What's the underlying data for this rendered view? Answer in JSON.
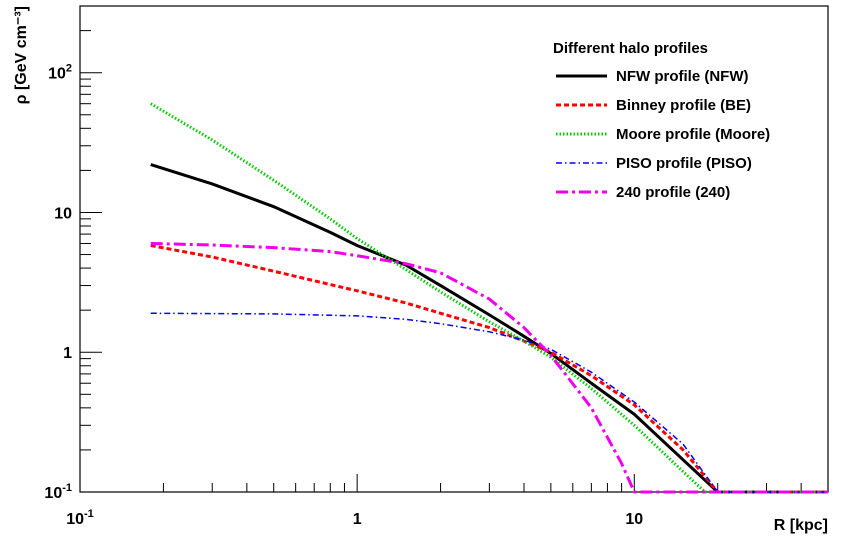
{
  "chart_data": {
    "type": "line",
    "title": "",
    "xlabel": "R [kpc]",
    "ylabel": "ρ [GeV cm⁻³]",
    "xscale": "log",
    "yscale": "log",
    "xlim": [
      0.1,
      50
    ],
    "ylim": [
      0.1,
      300
    ],
    "x_ticks": [
      {
        "value": 0.1,
        "base": "10",
        "exp": "-1"
      },
      {
        "value": 1,
        "base": "1",
        "exp": ""
      },
      {
        "value": 10,
        "base": "10",
        "exp": ""
      }
    ],
    "y_ticks": [
      {
        "value": 0.1,
        "base": "10",
        "exp": "-1"
      },
      {
        "value": 1,
        "base": "1",
        "exp": ""
      },
      {
        "value": 10,
        "base": "10",
        "exp": ""
      },
      {
        "value": 100,
        "base": "10",
        "exp": "2"
      }
    ],
    "grid": false,
    "legend": {
      "title": "Different halo profiles",
      "position": "top-right"
    },
    "series": [
      {
        "name": "NFW profile (NFW)",
        "color": "#000000",
        "dash": "solid",
        "points": [
          [
            0.18,
            22
          ],
          [
            0.3,
            16
          ],
          [
            0.5,
            11
          ],
          [
            0.8,
            7.2
          ],
          [
            1.0,
            5.8
          ],
          [
            1.5,
            4.2
          ],
          [
            2.0,
            3.0
          ],
          [
            3.0,
            1.85
          ],
          [
            4.0,
            1.3
          ],
          [
            5.0,
            0.98
          ],
          [
            7.0,
            0.6
          ],
          [
            10.0,
            0.36
          ],
          [
            15.0,
            0.17
          ],
          [
            20.0,
            0.1
          ],
          [
            50.0,
            0.1
          ]
        ]
      },
      {
        "name": "Binney profile (BE)",
        "color": "#ff0000",
        "dash": "dashed",
        "points": [
          [
            0.18,
            5.8
          ],
          [
            0.3,
            4.8
          ],
          [
            0.5,
            3.8
          ],
          [
            0.8,
            3.05
          ],
          [
            1.0,
            2.75
          ],
          [
            1.5,
            2.25
          ],
          [
            2.0,
            1.9
          ],
          [
            3.0,
            1.5
          ],
          [
            4.0,
            1.2
          ],
          [
            5.0,
            1.0
          ],
          [
            7.0,
            0.68
          ],
          [
            10.0,
            0.42
          ],
          [
            15.0,
            0.2
          ],
          [
            20.0,
            0.1
          ],
          [
            50.0,
            0.1
          ]
        ]
      },
      {
        "name": "Moore profile (Moore)",
        "color": "#00cc00",
        "dash": "dotted",
        "points": [
          [
            0.18,
            60
          ],
          [
            0.3,
            33
          ],
          [
            0.5,
            17
          ],
          [
            0.8,
            9.0
          ],
          [
            1.0,
            6.5
          ],
          [
            1.5,
            3.9
          ],
          [
            2.0,
            2.7
          ],
          [
            3.0,
            1.65
          ],
          [
            4.0,
            1.2
          ],
          [
            5.0,
            0.92
          ],
          [
            7.0,
            0.55
          ],
          [
            10.0,
            0.3
          ],
          [
            15.0,
            0.14
          ],
          [
            18.0,
            0.1
          ],
          [
            50.0,
            0.1
          ]
        ]
      },
      {
        "name": "PISO profile (PISO)",
        "color": "#0000ff",
        "dash": "dashdot",
        "points": [
          [
            0.18,
            1.9
          ],
          [
            0.5,
            1.88
          ],
          [
            1.0,
            1.82
          ],
          [
            1.5,
            1.72
          ],
          [
            2.0,
            1.6
          ],
          [
            3.0,
            1.4
          ],
          [
            4.0,
            1.22
          ],
          [
            5.0,
            1.05
          ],
          [
            7.0,
            0.72
          ],
          [
            10.0,
            0.44
          ],
          [
            15.0,
            0.22
          ],
          [
            20.0,
            0.1
          ],
          [
            50.0,
            0.1
          ]
        ]
      },
      {
        "name": "240 profile (240)",
        "color": "#ee00ee",
        "dash": "dashdot-long",
        "points": [
          [
            0.18,
            6.0
          ],
          [
            0.3,
            5.85
          ],
          [
            0.5,
            5.6
          ],
          [
            0.8,
            5.25
          ],
          [
            1.0,
            4.9
          ],
          [
            1.5,
            4.3
          ],
          [
            2.0,
            3.7
          ],
          [
            3.0,
            2.4
          ],
          [
            4.0,
            1.5
          ],
          [
            5.0,
            0.95
          ],
          [
            7.0,
            0.4
          ],
          [
            9.0,
            0.16
          ],
          [
            10.0,
            0.1
          ],
          [
            50.0,
            0.1
          ]
        ]
      }
    ]
  }
}
